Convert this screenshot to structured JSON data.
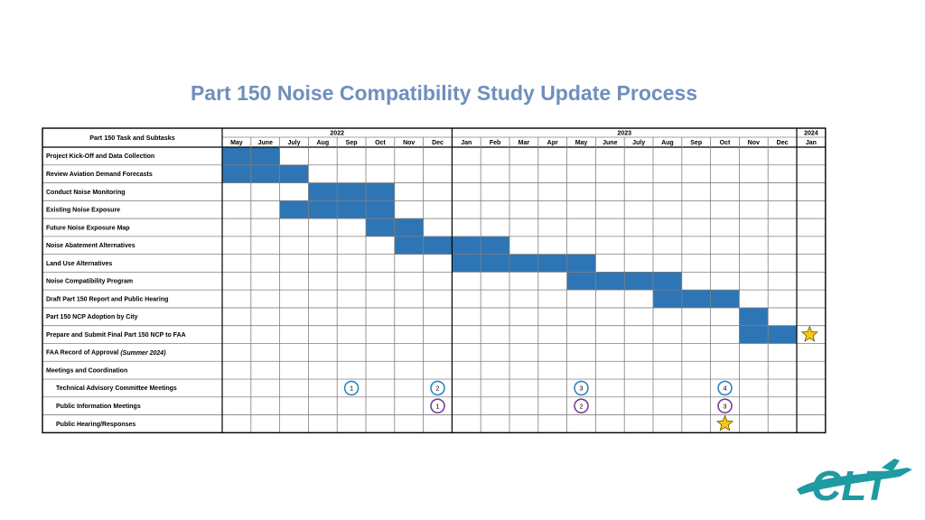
{
  "slide": {
    "title": "Part 150 Noise Compatibility Study Update Process"
  },
  "chart_data": {
    "type": "table",
    "header": "Part 150 Task and Subtasks",
    "years": [
      {
        "label": "2022",
        "start": 0,
        "end": 7
      },
      {
        "label": "2023",
        "start": 8,
        "end": 19
      },
      {
        "label": "2024",
        "start": 20,
        "end": 20
      }
    ],
    "months": [
      "May",
      "June",
      "July",
      "Aug",
      "Sep",
      "Oct",
      "Nov",
      "Dec",
      "Jan",
      "Feb",
      "Mar",
      "Apr",
      "May",
      "June",
      "July",
      "Aug",
      "Sep",
      "Oct",
      "Nov",
      "Dec",
      "Jan"
    ],
    "tasks": [
      {
        "label": "Project Kick-Off and Data Collection",
        "bold": true,
        "indent": false,
        "bars": [
          [
            0,
            1
          ]
        ]
      },
      {
        "label": "Review Aviation Demand Forecasts",
        "bold": true,
        "indent": false,
        "bars": [
          [
            0,
            2
          ]
        ]
      },
      {
        "label": "Conduct Noise Monitoring",
        "bold": true,
        "indent": false,
        "bars": [
          [
            3,
            5
          ]
        ]
      },
      {
        "label": "Existing Noise Exposure",
        "bold": true,
        "indent": false,
        "bars": [
          [
            2,
            5
          ]
        ]
      },
      {
        "label": "Future Noise Exposure Map",
        "bold": true,
        "indent": false,
        "bars": [
          [
            5,
            6
          ]
        ]
      },
      {
        "label": "Noise Abatement Alternatives",
        "bold": true,
        "indent": false,
        "bars": [
          [
            6,
            9
          ]
        ]
      },
      {
        "label": "Land Use Alternatives",
        "bold": true,
        "indent": false,
        "bars": [
          [
            8,
            12
          ]
        ]
      },
      {
        "label": "Noise Compatibility Program",
        "bold": true,
        "indent": false,
        "bars": [
          [
            12,
            15
          ]
        ]
      },
      {
        "label": "Draft Part 150 Report and Public Hearing",
        "bold": true,
        "indent": false,
        "bars": [
          [
            15,
            17
          ]
        ]
      },
      {
        "label": "Part 150 NCP Adoption by City",
        "bold": true,
        "indent": false,
        "bars": [
          [
            18,
            18
          ]
        ]
      },
      {
        "label": "Prepare and Submit Final Part 150 NCP to FAA",
        "bold": true,
        "indent": false,
        "bars": [
          [
            18,
            19
          ]
        ]
      },
      {
        "label": "FAA Record of Approval",
        "note": "(Summer 2024)",
        "bold": true,
        "indent": false,
        "bars": []
      },
      {
        "label": "Meetings and Coordination",
        "bold": true,
        "indent": false,
        "bars": []
      },
      {
        "label": "Technical Advisory Committee Meetings",
        "bold": true,
        "indent": true,
        "bars": []
      },
      {
        "label": "Public Information Meetings",
        "bold": true,
        "indent": true,
        "bars": []
      },
      {
        "label": "Public Hearing/Responses",
        "bold": true,
        "indent": true,
        "bars": []
      }
    ],
    "markers": [
      {
        "task": 10,
        "month": 19.95,
        "kind": "star"
      },
      {
        "task": 13,
        "month": 4,
        "kind": "circle",
        "label": "1",
        "color": "#2e86c1"
      },
      {
        "task": 13,
        "month": 7,
        "kind": "circle",
        "label": "2",
        "color": "#2e86c1"
      },
      {
        "task": 13,
        "month": 12,
        "kind": "circle",
        "label": "3",
        "color": "#2e86c1"
      },
      {
        "task": 13,
        "month": 17,
        "kind": "circle",
        "label": "4",
        "color": "#2e86c1"
      },
      {
        "task": 14,
        "month": 7,
        "kind": "circle",
        "label": "1",
        "color": "#7d3c98"
      },
      {
        "task": 14,
        "month": 12,
        "kind": "circle",
        "label": "2",
        "color": "#7d3c98"
      },
      {
        "task": 14,
        "month": 17,
        "kind": "circle",
        "label": "3",
        "color": "#7d3c98"
      },
      {
        "task": 15,
        "month": 17,
        "kind": "star"
      }
    ],
    "colors": {
      "bar": "#2e75b6",
      "star_fill": "#f5c518",
      "star_stroke": "#6b5a00",
      "title": "#6f8fbd"
    }
  },
  "logo": {
    "text": "CLT",
    "color": "#1f9aa3",
    "icon": "airplane-icon"
  }
}
